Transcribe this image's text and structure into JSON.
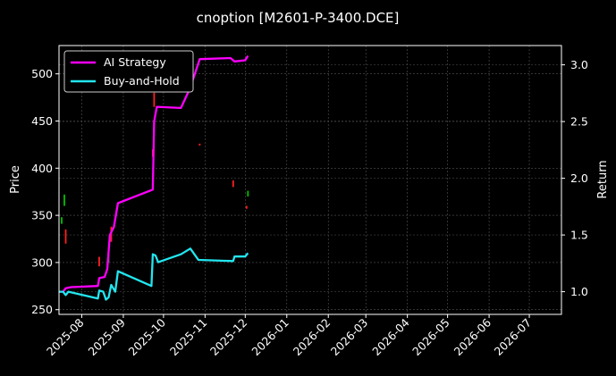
{
  "chart_data": {
    "type": "line",
    "title": "cnoption [M2601-P-3400.DCE]",
    "ylabel": "Price",
    "y2label": "Return",
    "xlim": [
      "2025-07-15",
      "2026-07-25"
    ],
    "ylim": [
      245,
      530
    ],
    "y2lim": [
      0.8,
      3.17
    ],
    "x_ticks": [
      "2025-08-01",
      "2025-09-01",
      "2025-10-01",
      "2025-11-01",
      "2025-12-01",
      "2026-01-01",
      "2026-02-01",
      "2026-03-01",
      "2026-04-01",
      "2026-05-01",
      "2026-06-01",
      "2026-07-01"
    ],
    "x_tick_labels": [
      "2025-08",
      "2025-09",
      "2025-10",
      "2025-11",
      "2025-12",
      "2026-01",
      "2026-02",
      "2026-03",
      "2026-04",
      "2026-05",
      "2026-06",
      "2026-07"
    ],
    "y_ticks": [
      250,
      300,
      350,
      400,
      450,
      500
    ],
    "y2_ticks": [
      1.0,
      1.5,
      2.0,
      2.5,
      3.0
    ],
    "y2_tick_labels": [
      "1.0",
      "1.5",
      "2.0",
      "2.5",
      "3.0"
    ],
    "grid": true,
    "legend": "top-left",
    "series": [
      {
        "name": "AI Strategy",
        "axis": "right",
        "color": "#ff00ff",
        "points": [
          [
            "2025-07-15",
            1.0
          ],
          [
            "2025-07-18",
            1.0
          ],
          [
            "2025-07-20",
            1.03
          ],
          [
            "2025-07-24",
            1.04
          ],
          [
            "2025-08-13",
            1.05
          ],
          [
            "2025-08-14",
            1.12
          ],
          [
            "2025-08-18",
            1.13
          ],
          [
            "2025-08-20",
            1.2
          ],
          [
            "2025-08-22",
            1.5
          ],
          [
            "2025-08-25",
            1.57
          ],
          [
            "2025-08-28",
            1.78
          ],
          [
            "2025-09-23",
            1.9
          ],
          [
            "2025-09-24",
            2.5
          ],
          [
            "2025-09-26",
            2.63
          ],
          [
            "2025-10-14",
            2.62
          ],
          [
            "2025-10-21",
            2.8
          ],
          [
            "2025-10-28",
            3.05
          ],
          [
            "2025-11-20",
            3.06
          ],
          [
            "2025-11-23",
            3.03
          ],
          [
            "2025-12-01",
            3.04
          ],
          [
            "2025-12-03",
            3.08
          ]
        ]
      },
      {
        "name": "Buy-and-Hold",
        "axis": "right",
        "color": "#22e6f0",
        "points": [
          [
            "2025-07-15",
            1.0
          ],
          [
            "2025-07-18",
            1.0
          ],
          [
            "2025-07-20",
            0.97
          ],
          [
            "2025-07-22",
            1.0
          ],
          [
            "2025-08-13",
            0.94
          ],
          [
            "2025-08-14",
            1.01
          ],
          [
            "2025-08-17",
            1.0
          ],
          [
            "2025-08-19",
            0.93
          ],
          [
            "2025-08-21",
            0.95
          ],
          [
            "2025-08-23",
            1.06
          ],
          [
            "2025-08-26",
            1.0
          ],
          [
            "2025-08-28",
            1.18
          ],
          [
            "2025-09-22",
            1.05
          ],
          [
            "2025-09-23",
            1.33
          ],
          [
            "2025-09-25",
            1.32
          ],
          [
            "2025-09-27",
            1.26
          ],
          [
            "2025-10-14",
            1.33
          ],
          [
            "2025-10-21",
            1.38
          ],
          [
            "2025-10-27",
            1.28
          ],
          [
            "2025-11-22",
            1.27
          ],
          [
            "2025-11-23",
            1.31
          ],
          [
            "2025-12-01",
            1.31
          ],
          [
            "2025-12-03",
            1.34
          ]
        ]
      }
    ],
    "candles": [
      {
        "date": "2025-07-17",
        "open": 341,
        "close": 348,
        "color": "#00c000"
      },
      {
        "date": "2025-07-19",
        "open": 360,
        "close": 372,
        "color": "#00c000"
      },
      {
        "date": "2025-07-20",
        "open": 335,
        "close": 320,
        "color": "#ff2020"
      },
      {
        "date": "2025-08-14",
        "open": 306,
        "close": 296,
        "color": "#ff2020"
      },
      {
        "date": "2025-08-21",
        "open": 300,
        "close": 312,
        "color": "#00c000"
      },
      {
        "date": "2025-08-23",
        "open": 322,
        "close": 338,
        "color": "#ff2020"
      },
      {
        "date": "2025-09-23",
        "open": 412,
        "close": 420,
        "color": "#ff2020"
      },
      {
        "date": "2025-09-24",
        "open": 465,
        "close": 480,
        "color": "#ff2020"
      },
      {
        "date": "2025-10-28",
        "open": 424,
        "close": 426,
        "color": "#ff2020"
      },
      {
        "date": "2025-11-22",
        "open": 380,
        "close": 387,
        "color": "#ff2020"
      },
      {
        "date": "2025-12-02",
        "open": 357,
        "close": 360,
        "color": "#ff2020"
      },
      {
        "date": "2025-12-03",
        "open": 370,
        "close": 376,
        "color": "#00c000"
      }
    ]
  }
}
